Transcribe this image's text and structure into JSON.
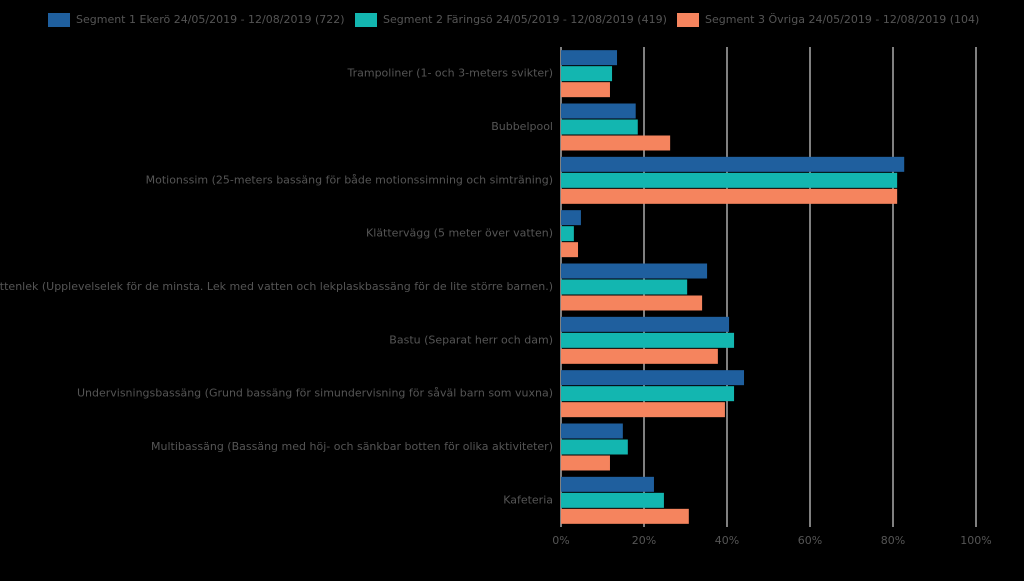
{
  "chart_data": {
    "type": "hbar",
    "categories": [
      "Trampoliner (1- och 3-meters svikter)",
      "Bubbelpool",
      "Motionssim (25-meters bassäng för både motionssimning och simträning)",
      "Klättervägg (5 meter över vatten)",
      "Vattenlek (Upplevelselek för de minsta. Lek med vatten och lekplaskbassäng för de lite större barnen.)",
      "Bastu (Separat herr och dam)",
      "Undervisningsbassäng (Grund bassäng för simundervisning för såväl barn som vuxna)",
      "Multibassäng (Bassäng med höj- och sänkbar botten för olika aktiviteter)",
      "Kafeteria"
    ],
    "series": [
      {
        "name": "Segment 1 Ekerö 24/05/2019 - 12/08/2019 (722)",
        "color": "#1f5f9e",
        "values": [
          13.5,
          18,
          82.7,
          4.8,
          35.2,
          40.5,
          44.1,
          14.9,
          22.4
        ]
      },
      {
        "name": "Segment 2 Färingsö 24/05/2019 - 12/08/2019 (419)",
        "color": "#13b6b0",
        "values": [
          12.3,
          18.5,
          81,
          3.1,
          30.4,
          41.7,
          41.7,
          16.1,
          24.8
        ]
      },
      {
        "name": "Segment 3 Övriga 24/05/2019 - 12/08/2019 (104)",
        "color": "#f5845e",
        "values": [
          11.8,
          26.3,
          81,
          4.1,
          34,
          37.8,
          39.5,
          11.8,
          30.8
        ]
      }
    ],
    "xlim": [
      0,
      100
    ],
    "xticks": [
      {
        "value": 0,
        "label": "0%"
      },
      {
        "value": 20,
        "label": "20%"
      },
      {
        "value": 40,
        "label": "40%"
      },
      {
        "value": 60,
        "label": "60%"
      },
      {
        "value": 80,
        "label": "80%"
      },
      {
        "value": 100,
        "label": "100%"
      }
    ],
    "grid": true
  }
}
